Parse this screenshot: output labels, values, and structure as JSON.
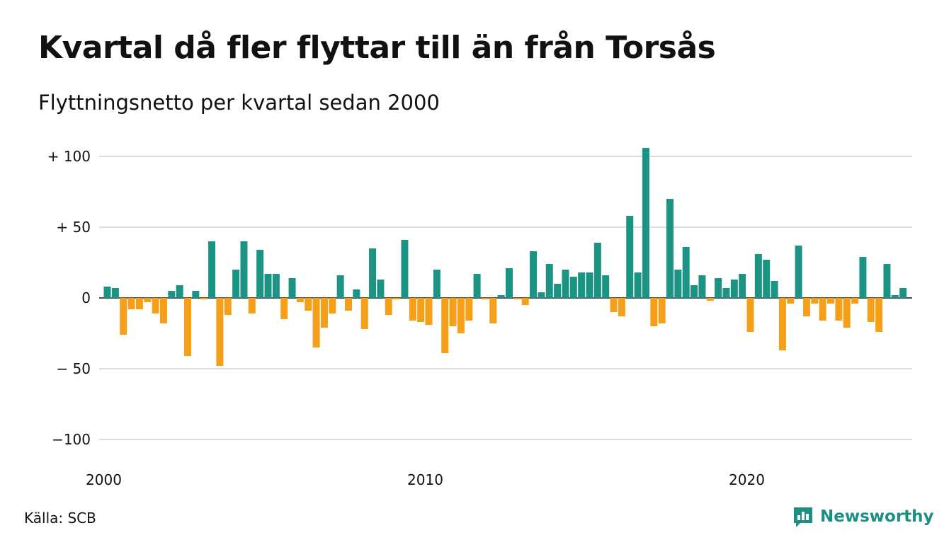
{
  "title": "Kvartal då fler flyttar till än från Torsås",
  "subtitle": "Flyttningsnetto per kvartal sedan 2000",
  "source": "Källa: SCB",
  "brand": {
    "name": "Newsworthy",
    "icon": "bar-chart-speech-bubble-icon"
  },
  "colors": {
    "positive": "#1b9484",
    "negative": "#f6a01a",
    "grid": "#dddddd",
    "brand": "#1a8f82"
  },
  "chart_data": {
    "type": "bar",
    "x_start": "2000 Q1",
    "x_ticks": [
      "2000",
      "2010",
      "2020"
    ],
    "y_ticks": [
      "+ 100",
      "+  50",
      "0",
      "− 50",
      "−100"
    ],
    "ylim": [
      -100,
      110
    ],
    "grid": true,
    "values": [
      8,
      7,
      -26,
      -8,
      -8,
      -3,
      -11,
      -18,
      5,
      9,
      -41,
      5,
      -1,
      40,
      -48,
      -12,
      20,
      40,
      -11,
      34,
      17,
      17,
      -15,
      14,
      -3,
      -9,
      -35,
      -21,
      -11,
      16,
      -9,
      6,
      -22,
      35,
      13,
      -12,
      -1,
      41,
      -16,
      -17,
      -19,
      20,
      -39,
      -20,
      -25,
      -16,
      17,
      -1,
      -18,
      2,
      21,
      -1,
      -5,
      33,
      4,
      24,
      10,
      20,
      15,
      18,
      18,
      39,
      16,
      -10,
      -13,
      58,
      18,
      106,
      -20,
      -18,
      70,
      20,
      36,
      9,
      16,
      -2,
      14,
      7,
      13,
      17,
      -24,
      31,
      27,
      12,
      -37,
      -4,
      37,
      -13,
      -4,
      -16,
      -4,
      -16,
      -21,
      -4,
      29,
      -17,
      -24,
      24,
      2,
      7
    ]
  }
}
